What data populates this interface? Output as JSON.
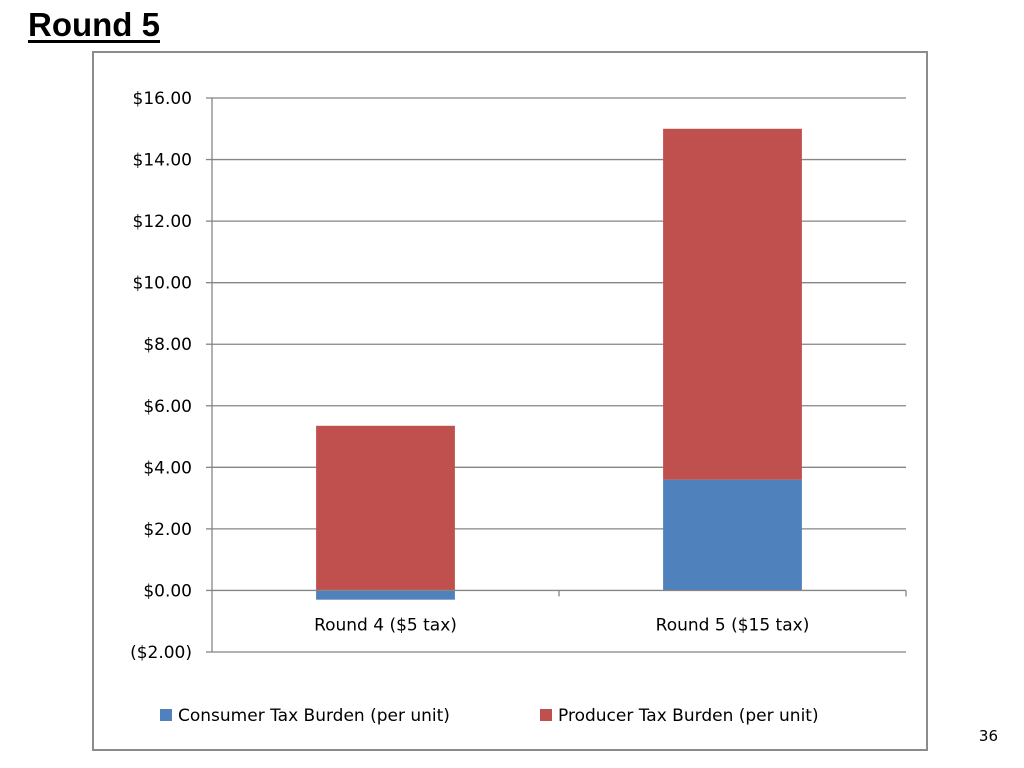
{
  "slide": {
    "title": "Round 5",
    "page_number": "36"
  },
  "chart_data": {
    "type": "bar",
    "stacked": true,
    "categories": [
      "Round 4 ($5 tax)",
      "Round 5 ($15 tax)"
    ],
    "series": [
      {
        "name": "Consumer Tax Burden (per unit)",
        "color": "#4F81BD",
        "values": [
          -0.3,
          3.6
        ]
      },
      {
        "name": "Producer Tax Burden (per unit)",
        "color": "#C0504D",
        "values": [
          5.35,
          11.4
        ]
      }
    ],
    "ylim": [
      -2,
      16
    ],
    "yticks": [
      {
        "value": 16,
        "label": "$16.00"
      },
      {
        "value": 14,
        "label": "$14.00"
      },
      {
        "value": 12,
        "label": "$12.00"
      },
      {
        "value": 10,
        "label": "$10.00"
      },
      {
        "value": 8,
        "label": "$8.00"
      },
      {
        "value": 6,
        "label": "$6.00"
      },
      {
        "value": 4,
        "label": "$4.00"
      },
      {
        "value": 2,
        "label": "$2.00"
      },
      {
        "value": 0,
        "label": "$0.00"
      },
      {
        "value": -2,
        "label": "($2.00)",
        "color": "#FF0000"
      }
    ],
    "grid": true,
    "legend_position": "bottom",
    "title": "",
    "xlabel": "",
    "ylabel": ""
  }
}
